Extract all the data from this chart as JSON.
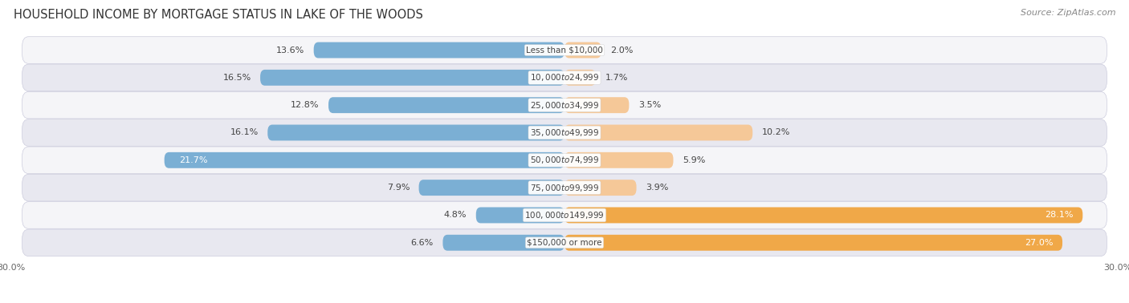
{
  "title": "HOUSEHOLD INCOME BY MORTGAGE STATUS IN LAKE OF THE WOODS",
  "source": "Source: ZipAtlas.com",
  "categories": [
    "Less than $10,000",
    "$10,000 to $24,999",
    "$25,000 to $34,999",
    "$35,000 to $49,999",
    "$50,000 to $74,999",
    "$75,000 to $99,999",
    "$100,000 to $149,999",
    "$150,000 or more"
  ],
  "without_mortgage": [
    13.6,
    16.5,
    12.8,
    16.1,
    21.7,
    7.9,
    4.8,
    6.6
  ],
  "with_mortgage": [
    2.0,
    1.7,
    3.5,
    10.2,
    5.9,
    3.9,
    28.1,
    27.0
  ],
  "color_without": "#7bafd4",
  "color_with_light": "#f5c898",
  "color_with_dark": "#f0a848",
  "bg_light": "#f5f5f8",
  "bg_dark": "#e8e8f0",
  "xlim": 30.0,
  "title_fontsize": 10.5,
  "source_fontsize": 8,
  "bar_label_fontsize": 8,
  "category_fontsize": 7.5,
  "bar_height": 0.58,
  "large_threshold_without": 20.0,
  "large_threshold_with": 15.0
}
